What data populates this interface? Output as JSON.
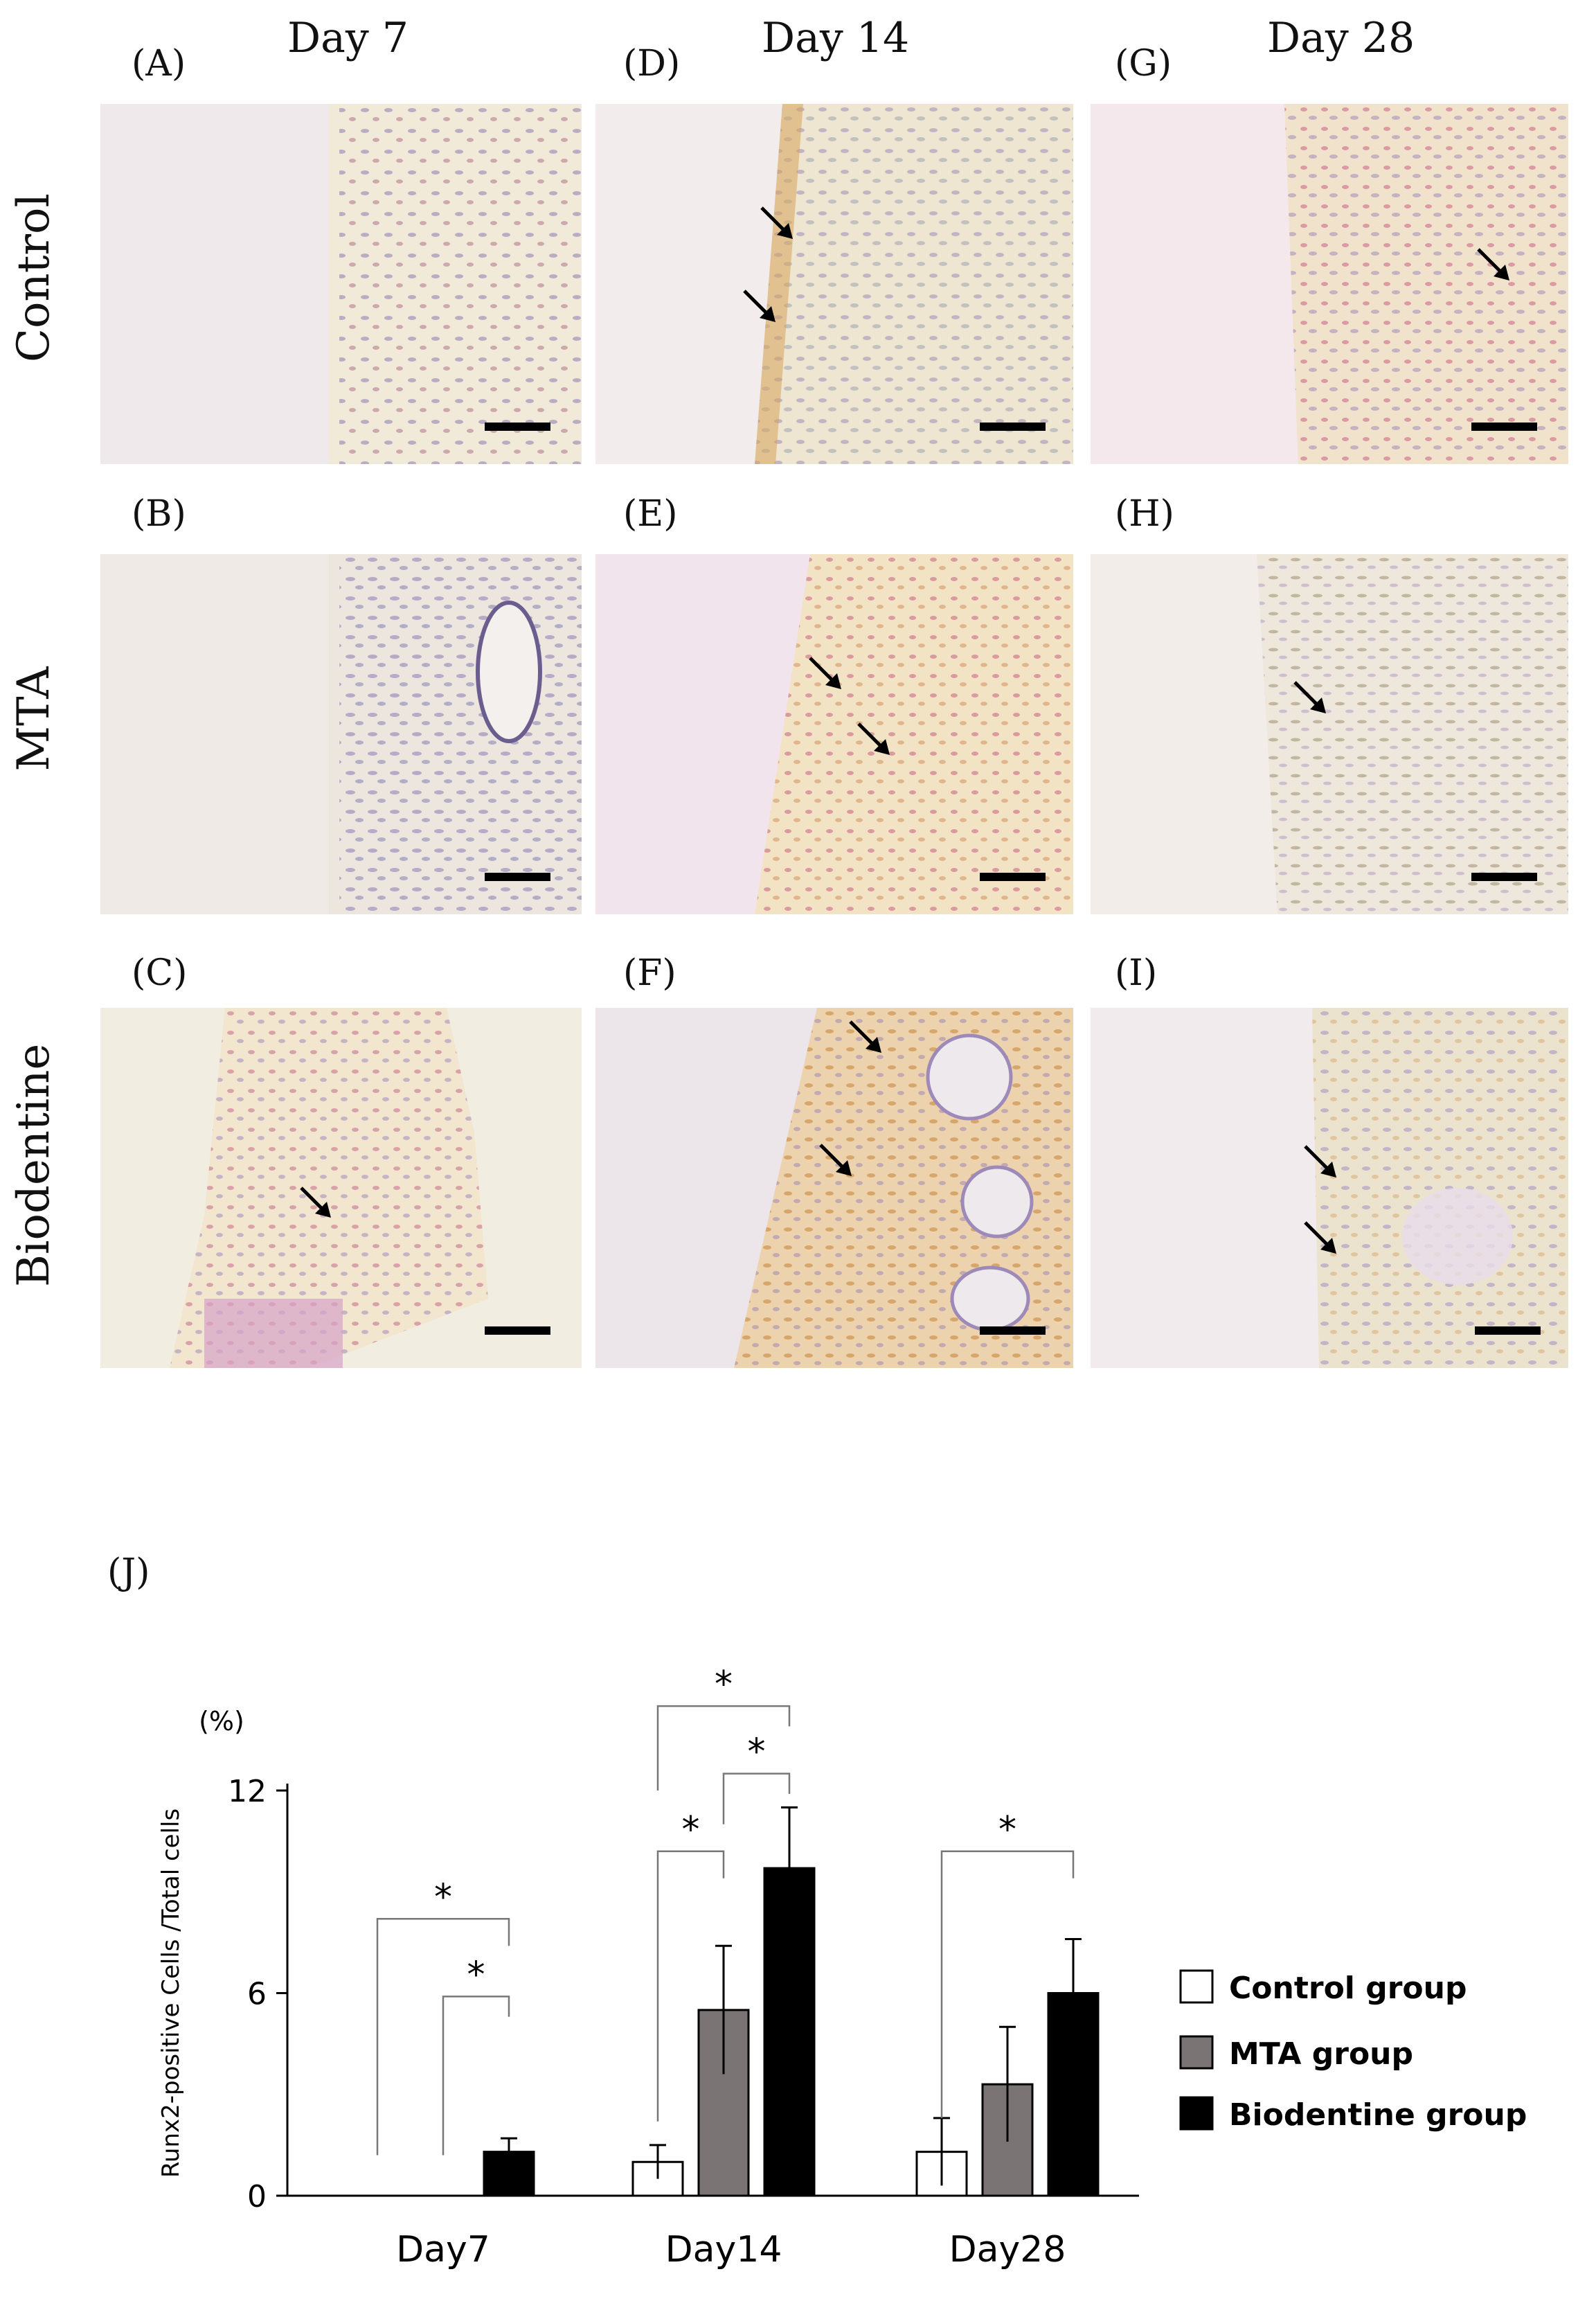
{
  "columns": [
    "Day 7",
    "Day 14",
    "Day 28"
  ],
  "rows": [
    "Control",
    "MTA",
    "Biodentine"
  ],
  "panel_labels": [
    "(A)",
    "(B)",
    "(C)",
    "(D)",
    "(E)",
    "(F)",
    "(G)",
    "(H)",
    "(I)"
  ],
  "chart_label": "(J)",
  "colors": {
    "tissue_pink": "#f1e4e4",
    "tissue_cream": "#f3ecdc",
    "stain_brown": "#d6a25a",
    "nuclei_purple": "#8e78b4",
    "control_bar": "#ffffff",
    "mta_bar": "#7a7474",
    "biodentine_bar": "#000000"
  },
  "chart_data": {
    "type": "bar",
    "title": "",
    "xlabel": "",
    "ylabel": "Runx2-positive Cells /Total cells",
    "yunit": "(%)",
    "ylim": [
      0,
      12
    ],
    "yticks": [
      0,
      6,
      12
    ],
    "categories": [
      "Day7",
      "Day14",
      "Day28"
    ],
    "series": [
      {
        "name": "Control group",
        "values": [
          0,
          1.0,
          1.3
        ],
        "errors": [
          0,
          0.5,
          1.0
        ]
      },
      {
        "name": "MTA group",
        "values": [
          0,
          5.5,
          3.3
        ],
        "errors": [
          0,
          1.9,
          1.7
        ]
      },
      {
        "name": "Biodentine group",
        "values": [
          1.3,
          9.7,
          6.0
        ],
        "errors": [
          0.4,
          1.8,
          1.6
        ]
      }
    ],
    "significance_symbol": "*",
    "significance": [
      {
        "group": 0,
        "from": 0,
        "to": 2
      },
      {
        "group": 0,
        "from": 1,
        "to": 2
      },
      {
        "group": 1,
        "from": 0,
        "to": 1
      },
      {
        "group": 1,
        "from": 0,
        "to": 2
      },
      {
        "group": 1,
        "from": 1,
        "to": 2
      },
      {
        "group": 2,
        "from": 0,
        "to": 2
      }
    ],
    "legend_position": "right"
  }
}
